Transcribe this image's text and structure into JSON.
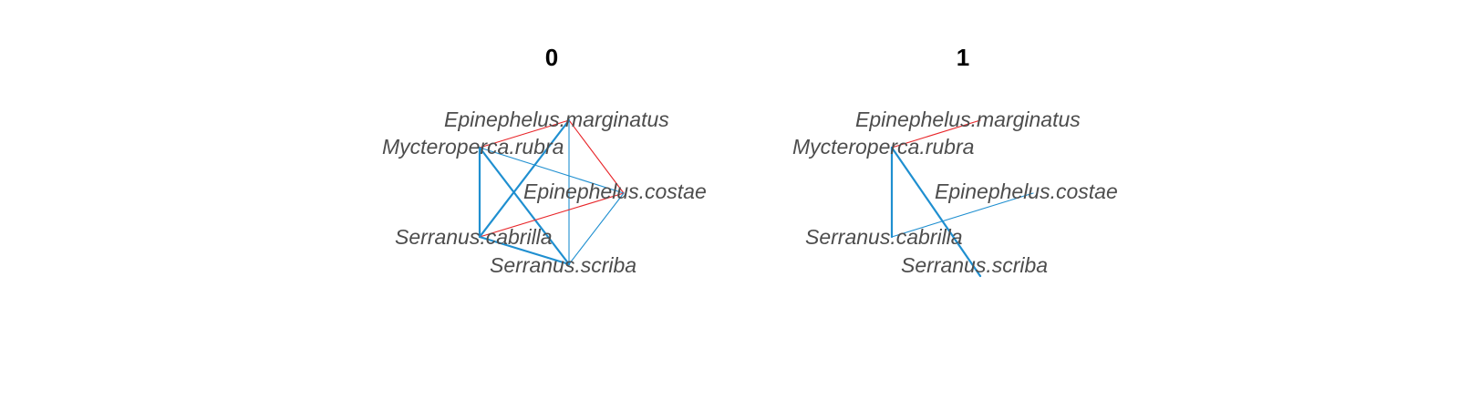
{
  "colors": {
    "positive_edge": "#1f8fd0",
    "negative_edge": "#e8262a",
    "label": "#4d4d4d",
    "title": "#000000",
    "background": "#ffffff"
  },
  "panels": [
    {
      "title": "0",
      "nodes": [
        {
          "id": "Epinephelus.marginatus",
          "label": "Epinephelus.marginatus"
        },
        {
          "id": "Mycteroperca.rubra",
          "label": "Mycteroperca.rubra"
        },
        {
          "id": "Epinephelus.costae",
          "label": "Epinephelus.costae"
        },
        {
          "id": "Serranus.cabrilla",
          "label": "Serranus.cabrilla"
        },
        {
          "id": "Serranus.scriba",
          "label": "Serranus.scriba"
        }
      ],
      "edges": [
        {
          "source": "Mycteroperca.rubra",
          "target": "Epinephelus.marginatus",
          "sign": "negative",
          "strength": 1
        },
        {
          "source": "Epinephelus.marginatus",
          "target": "Epinephelus.costae",
          "sign": "negative",
          "strength": 1
        },
        {
          "source": "Epinephelus.marginatus",
          "target": "Serranus.scriba",
          "sign": "positive",
          "strength": 1
        },
        {
          "source": "Epinephelus.marginatus",
          "target": "Serranus.cabrilla",
          "sign": "positive",
          "strength": 2
        },
        {
          "source": "Mycteroperca.rubra",
          "target": "Epinephelus.costae",
          "sign": "positive",
          "strength": 1
        },
        {
          "source": "Mycteroperca.rubra",
          "target": "Serranus.cabrilla",
          "sign": "positive",
          "strength": 2
        },
        {
          "source": "Mycteroperca.rubra",
          "target": "Serranus.scriba",
          "sign": "positive",
          "strength": 2
        },
        {
          "source": "Serranus.cabrilla",
          "target": "Epinephelus.costae",
          "sign": "negative",
          "strength": 1
        },
        {
          "source": "Epinephelus.costae",
          "target": "Serranus.scriba",
          "sign": "positive",
          "strength": 1
        },
        {
          "source": "Serranus.cabrilla",
          "target": "Serranus.scriba",
          "sign": "positive",
          "strength": 2
        }
      ]
    },
    {
      "title": "1",
      "nodes": [
        {
          "id": "Epinephelus.marginatus",
          "label": "Epinephelus.marginatus"
        },
        {
          "id": "Mycteroperca.rubra",
          "label": "Mycteroperca.rubra"
        },
        {
          "id": "Epinephelus.costae",
          "label": "Epinephelus.costae"
        },
        {
          "id": "Serranus.cabrilla",
          "label": "Serranus.cabrilla"
        },
        {
          "id": "Serranus.scriba",
          "label": "Serranus.scriba"
        }
      ],
      "edges": [
        {
          "source": "Mycteroperca.rubra",
          "target": "Epinephelus.marginatus",
          "sign": "negative",
          "strength": 1
        },
        {
          "source": "Mycteroperca.rubra",
          "target": "Serranus.cabrilla",
          "sign": "positive",
          "strength": 2
        },
        {
          "source": "Mycteroperca.rubra",
          "target": "Serranus.scriba",
          "sign": "positive",
          "strength": 2
        },
        {
          "source": "Serranus.cabrilla",
          "target": "Epinephelus.costae",
          "sign": "positive",
          "strength": 1
        }
      ]
    }
  ]
}
